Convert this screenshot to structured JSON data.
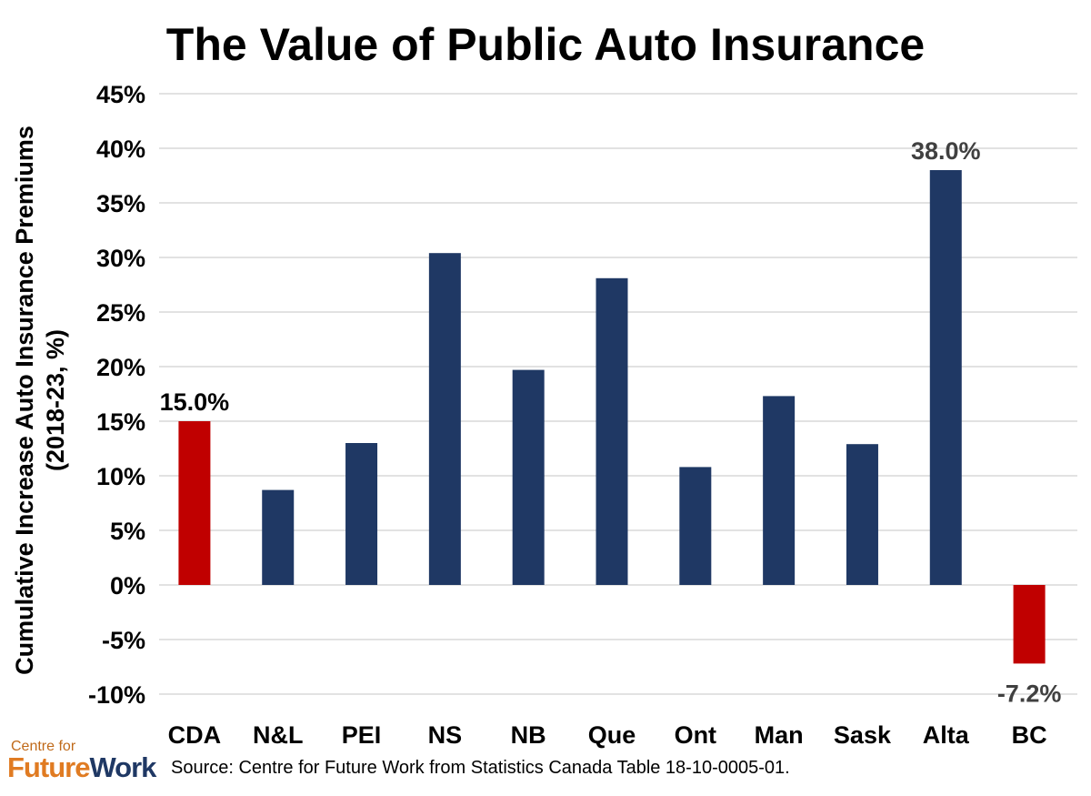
{
  "chart_data": {
    "type": "bar",
    "title": "The Value of Public Auto Insurance",
    "ylabel_line1": "Cumulative Increase Auto Insurance Premiums",
    "ylabel_line2": "(2018-23, %)",
    "xlabel": "",
    "categories": [
      "CDA",
      "N&L",
      "PEI",
      "NS",
      "NB",
      "Que",
      "Ont",
      "Man",
      "Sask",
      "Alta",
      "BC"
    ],
    "values": [
      15.0,
      8.7,
      13.0,
      30.4,
      19.7,
      28.1,
      10.8,
      17.3,
      12.9,
      38.0,
      -7.2
    ],
    "highlight_colors": [
      "#c00000",
      "#1f3864",
      "#1f3864",
      "#1f3864",
      "#1f3864",
      "#1f3864",
      "#1f3864",
      "#1f3864",
      "#1f3864",
      "#1f3864",
      "#c00000"
    ],
    "data_labels": [
      {
        "index": 0,
        "text": "15.0%"
      },
      {
        "index": 9,
        "text": "38.0%"
      },
      {
        "index": 10,
        "text": "-7.2%"
      }
    ],
    "ylim": [
      -10,
      45
    ],
    "yticks": [
      45,
      40,
      35,
      30,
      25,
      20,
      15,
      10,
      5,
      0,
      -5,
      -10
    ],
    "ytick_labels": [
      "45%",
      "40%",
      "35%",
      "30%",
      "25%",
      "20%",
      "15%",
      "10%",
      "5%",
      "0%",
      "-5%",
      "-10%"
    ],
    "grid": true,
    "legend": "none"
  },
  "footer": {
    "logo_top": "Centre for",
    "logo_future": "Future",
    "logo_work": "Work",
    "source": "Source: Centre for Future Work from Statistics Canada Table 18-10-0005-01."
  },
  "colors": {
    "navy": "#1f3864",
    "red": "#c00000",
    "grid": "#d9d9d9",
    "label_gray": "#404040"
  }
}
